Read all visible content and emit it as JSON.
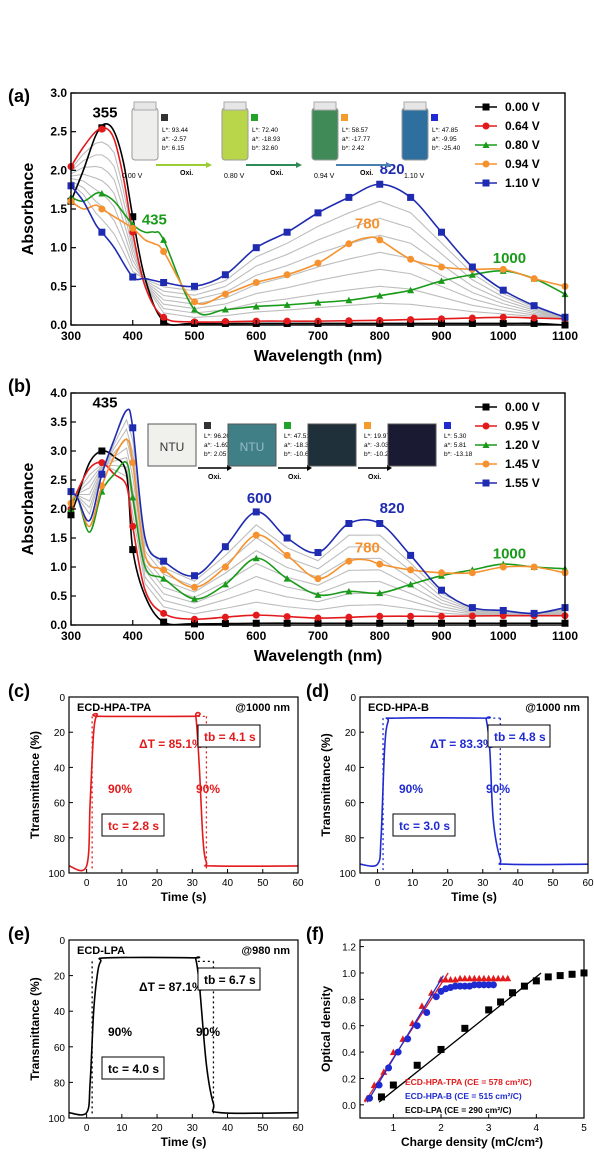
{
  "figure": {
    "panels": [
      "(a)",
      "(b)",
      "(c)",
      "(d)",
      "(e)",
      "(f)"
    ]
  },
  "chart_data": [
    {
      "id": "a",
      "type": "line",
      "xlabel": "Wavelength (nm)",
      "ylabel": "Absorbance",
      "xlim": [
        300,
        1100
      ],
      "ylim": [
        0,
        3.0
      ],
      "xticks": [
        300,
        400,
        500,
        600,
        700,
        800,
        900,
        1000,
        1100
      ],
      "yticks": [
        0.0,
        0.5,
        1.0,
        1.5,
        2.0,
        2.5,
        3.0
      ],
      "legend": [
        "0.00 V",
        "0.64 V",
        "0.80 V",
        "0.94 V",
        "1.10 V"
      ],
      "annotations": [
        "355",
        "435",
        "780",
        "820",
        "1000"
      ],
      "inset": {
        "panels": [
          {
            "label": "L*: 93.44\na*: -2.57\nb*: 6.15",
            "voltage": "0.00 V",
            "color": "#333333",
            "vial": "#eeeeec"
          },
          {
            "label": "L*: 72.40\na*: -18.93\nb*: 32.60",
            "voltage": "0.80 V",
            "color": "#22a229",
            "vial": "#b9d64a"
          },
          {
            "label": "L*: 58.57\na*: -17.77\nb*: 2.42",
            "voltage": "0.94 V",
            "color": "#f39b2b",
            "vial": "#3f8a56"
          },
          {
            "label": "L*: 47.85\na*: -9.95\nb*: -25.40",
            "voltage": "1.10 V",
            "color": "#1f2bd0",
            "vial": "#2f6f9f"
          }
        ],
        "arrow_text": [
          "Oxi.",
          "Oxi.",
          "Oxi."
        ]
      },
      "series": [
        {
          "name": "0.00 V",
          "color": "#000000",
          "marker": "square",
          "x": [
            300,
            320,
            340,
            355,
            370,
            385,
            400,
            420,
            450,
            500,
            600,
            700,
            800,
            900,
            1000,
            1050,
            1100
          ],
          "y": [
            1.6,
            2.0,
            2.45,
            2.6,
            2.5,
            2.1,
            1.4,
            0.6,
            0.05,
            0.02,
            0.02,
            0.02,
            0.02,
            0.02,
            0.02,
            0.02,
            0.0
          ]
        },
        {
          "name": "0.64 V",
          "color": "#e31a1c",
          "marker": "circle",
          "x": [
            300,
            320,
            340,
            355,
            370,
            385,
            400,
            420,
            450,
            500,
            600,
            700,
            800,
            900,
            1000,
            1050,
            1100
          ],
          "y": [
            2.05,
            2.3,
            2.5,
            2.55,
            2.4,
            1.9,
            1.2,
            0.5,
            0.1,
            0.04,
            0.05,
            0.05,
            0.06,
            0.08,
            0.1,
            0.09,
            0.08
          ]
        },
        {
          "name": "0.80 V",
          "color": "#1a9a1a",
          "marker": "triangle",
          "x": [
            300,
            320,
            340,
            350,
            370,
            400,
            420,
            435,
            450,
            500,
            550,
            600,
            650,
            700,
            750,
            800,
            850,
            900,
            950,
            1000,
            1050,
            1100
          ],
          "y": [
            1.65,
            1.6,
            1.7,
            1.7,
            1.6,
            1.3,
            1.2,
            1.2,
            1.1,
            0.2,
            0.2,
            0.24,
            0.26,
            0.29,
            0.32,
            0.38,
            0.45,
            0.57,
            0.65,
            0.7,
            0.6,
            0.4
          ]
        },
        {
          "name": "0.94 V",
          "color": "#f5922f",
          "marker": "circle",
          "x": [
            300,
            320,
            340,
            350,
            370,
            400,
            420,
            435,
            450,
            500,
            550,
            600,
            650,
            700,
            750,
            780,
            800,
            850,
            900,
            950,
            1000,
            1050,
            1100
          ],
          "y": [
            1.6,
            1.5,
            1.55,
            1.5,
            1.4,
            1.25,
            1.1,
            1.05,
            0.95,
            0.3,
            0.4,
            0.55,
            0.65,
            0.8,
            1.05,
            1.13,
            1.1,
            0.85,
            0.75,
            0.72,
            0.72,
            0.6,
            0.5
          ]
        },
        {
          "name": "1.10 V",
          "color": "#1f2bb0",
          "marker": "square",
          "x": [
            300,
            320,
            340,
            350,
            370,
            400,
            420,
            450,
            500,
            550,
            600,
            650,
            700,
            750,
            800,
            850,
            900,
            950,
            1000,
            1050,
            1100
          ],
          "y": [
            1.8,
            1.6,
            1.3,
            1.2,
            1.0,
            0.62,
            0.6,
            0.55,
            0.5,
            0.65,
            1.0,
            1.2,
            1.45,
            1.65,
            1.82,
            1.65,
            1.2,
            0.75,
            0.45,
            0.25,
            0.1
          ]
        }
      ]
    },
    {
      "id": "b",
      "type": "line",
      "xlabel": "Wavelength (nm)",
      "ylabel": "Absorbance",
      "xlim": [
        300,
        1100
      ],
      "ylim": [
        0,
        4.0
      ],
      "xticks": [
        300,
        400,
        500,
        600,
        700,
        800,
        900,
        1000,
        1100
      ],
      "yticks": [
        0.0,
        0.5,
        1.0,
        1.5,
        2.0,
        2.5,
        3.0,
        3.5,
        4.0
      ],
      "legend": [
        "0.00 V",
        "0.95 V",
        "1.20 V",
        "1.45 V",
        "1.55 V"
      ],
      "annotations": [
        "435",
        "600",
        "780",
        "820",
        "1000"
      ],
      "inset": {
        "panels": [
          {
            "label": "L*: 96.20\na*: -1.69\nb*: 2.05",
            "color": "#333333",
            "film": "#f0f0ec",
            "text": "NTU"
          },
          {
            "label": "L*: 47.51\na*: -18.31\nb*: -10.67",
            "color": "#22a229",
            "film": "#3f7f85",
            "text": "NTU"
          },
          {
            "label": "L*: 19.97\na*: -3.03\nb*: -10.20",
            "color": "#f39b2b",
            "film": "#20303a",
            "text": ""
          },
          {
            "label": "L*: 5.30\na*: 5.81\nb*: -13.18",
            "color": "#1f2bd0",
            "film": "#1a1a33",
            "text": ""
          }
        ],
        "arrow_text": [
          "Oxi.",
          "Oxi.",
          "Oxi."
        ]
      },
      "series": [
        {
          "name": "0.00 V",
          "color": "#000000",
          "marker": "square",
          "x": [
            300,
            310,
            330,
            350,
            370,
            390,
            400,
            420,
            450,
            500,
            600,
            700,
            800,
            900,
            1000,
            1100
          ],
          "y": [
            1.9,
            2.2,
            2.8,
            3.0,
            2.9,
            2.6,
            1.3,
            0.5,
            0.05,
            0.02,
            0.03,
            0.03,
            0.03,
            0.03,
            0.03,
            0.03
          ]
        },
        {
          "name": "0.95 V",
          "color": "#e31a1c",
          "marker": "circle",
          "x": [
            300,
            310,
            330,
            350,
            370,
            390,
            400,
            420,
            450,
            500,
            600,
            700,
            800,
            900,
            1000,
            1100
          ],
          "y": [
            2.0,
            2.3,
            2.7,
            2.8,
            2.6,
            2.4,
            1.7,
            0.6,
            0.2,
            0.1,
            0.17,
            0.12,
            0.15,
            0.15,
            0.16,
            0.16
          ]
        },
        {
          "name": "1.20 V",
          "color": "#1a9a1a",
          "marker": "triangle",
          "x": [
            300,
            310,
            330,
            350,
            370,
            390,
            400,
            420,
            450,
            500,
            550,
            600,
            650,
            700,
            750,
            800,
            850,
            900,
            950,
            1000,
            1050,
            1100
          ],
          "y": [
            2.0,
            2.2,
            1.6,
            2.3,
            2.6,
            2.8,
            2.2,
            1.0,
            0.8,
            0.45,
            0.7,
            1.15,
            0.8,
            0.52,
            0.58,
            0.55,
            0.7,
            0.85,
            0.95,
            1.05,
            1.0,
            0.97
          ]
        },
        {
          "name": "1.45 V",
          "color": "#f5922f",
          "marker": "circle",
          "x": [
            300,
            310,
            330,
            350,
            370,
            390,
            400,
            420,
            450,
            500,
            550,
            600,
            650,
            700,
            750,
            780,
            800,
            850,
            900,
            950,
            1000,
            1050,
            1100
          ],
          "y": [
            2.1,
            2.2,
            1.7,
            2.4,
            2.9,
            3.2,
            2.8,
            1.2,
            0.95,
            0.65,
            1.0,
            1.55,
            1.2,
            0.8,
            1.1,
            1.12,
            1.05,
            0.95,
            0.9,
            0.9,
            1.0,
            1.0,
            0.9
          ]
        },
        {
          "name": "1.55 V",
          "color": "#1f2bb0",
          "marker": "square",
          "x": [
            300,
            310,
            330,
            350,
            370,
            390,
            400,
            420,
            450,
            500,
            550,
            600,
            650,
            700,
            750,
            800,
            850,
            900,
            950,
            1000,
            1050,
            1100
          ],
          "y": [
            2.3,
            2.2,
            1.8,
            2.6,
            3.2,
            3.7,
            3.4,
            1.5,
            1.1,
            0.85,
            1.35,
            1.95,
            1.5,
            1.25,
            1.75,
            1.75,
            1.2,
            0.6,
            0.3,
            0.25,
            0.2,
            0.3
          ]
        }
      ]
    },
    {
      "id": "c",
      "type": "line",
      "title": "ECD-HPA-TPA",
      "note": "@1000 nm",
      "xlabel": "Time (s)",
      "ylabel": "Ttransmittance (%)",
      "xlim": [
        -5,
        60
      ],
      "ylim": [
        100,
        0
      ],
      "xticks": [
        0,
        10,
        20,
        30,
        40,
        50,
        60
      ],
      "yticks": [
        0,
        20,
        40,
        60,
        80,
        100
      ],
      "color": "#e31a1c",
      "labels": {
        "delta": "ΔT = 85.1%",
        "tb": "t<sub>b</sub> = 4.1 s",
        "tb_plain": "tb = 4.1 s",
        "tc_plain": "tc = 2.8 s",
        "p1": "90%",
        "p2": "90%"
      },
      "x": [
        -5,
        0,
        1,
        2,
        3,
        4,
        30,
        31,
        32,
        33,
        34,
        36,
        60
      ],
      "y": [
        96,
        96,
        60,
        20,
        10,
        11,
        11,
        11,
        40,
        80,
        94,
        96,
        96
      ]
    },
    {
      "id": "d",
      "type": "line",
      "title": "ECD-HPA-B",
      "note": "@1000 nm",
      "xlabel": "Time (s)",
      "ylabel": "Transmittance (%)",
      "xlim": [
        -5,
        60
      ],
      "ylim": [
        100,
        0
      ],
      "xticks": [
        0,
        10,
        20,
        30,
        40,
        50,
        60
      ],
      "yticks": [
        0,
        20,
        40,
        60,
        80,
        100
      ],
      "color": "#1f2bd0",
      "labels": {
        "delta": "ΔT = 83.3%",
        "tb_plain": "tb = 4.8 s",
        "tc_plain": "tc = 3.0 s",
        "p1": "90%",
        "p2": "90%"
      },
      "x": [
        -5,
        0,
        1,
        2,
        3,
        5,
        30,
        31,
        32,
        33,
        35,
        37,
        60
      ],
      "y": [
        95,
        95,
        80,
        30,
        14,
        12,
        12,
        13,
        30,
        70,
        92,
        95,
        95
      ]
    },
    {
      "id": "e",
      "type": "line",
      "title": "ECD-LPA",
      "note": "@980 nm",
      "xlabel": "Time (s)",
      "ylabel": "Transmittance (%)",
      "xlim": [
        -5,
        60
      ],
      "ylim": [
        100,
        0
      ],
      "xticks": [
        0,
        10,
        20,
        30,
        40,
        50,
        60
      ],
      "yticks": [
        0,
        20,
        40,
        60,
        80,
        100
      ],
      "color": "#000000",
      "labels": {
        "delta": "ΔT = 87.1%",
        "tb_plain": "tb = 6.7 s",
        "tc_plain": "tc = 4.0 s",
        "p1": "90%",
        "p2": "90%"
      },
      "x": [
        -5,
        0,
        1,
        2,
        3,
        4,
        6,
        30,
        31,
        32,
        34,
        36,
        38,
        60
      ],
      "y": [
        97,
        97,
        80,
        40,
        20,
        12,
        10,
        10,
        11,
        25,
        70,
        92,
        97,
        97
      ]
    },
    {
      "id": "f",
      "type": "scatter",
      "xlabel": "Charge density (mC/cm²)",
      "ylabel": "Optical density",
      "xlim": [
        0.3,
        5
      ],
      "ylim": [
        -0.1,
        1.25
      ],
      "xticks": [
        1,
        2,
        3,
        4,
        5
      ],
      "yticks": [
        0.0,
        0.2,
        0.4,
        0.6,
        0.8,
        1.0,
        1.2
      ],
      "legend": [
        "ECD-HPA-TPA (CE = 578 cm²/C)",
        "ECD-HPA-B (CE = 515 cm²/C)",
        "ECD-LPA (CE = 290 cm²/C)"
      ],
      "series": [
        {
          "name": "ECD-HPA-TPA (CE = 578 cm²/C)",
          "color": "#e31a1c",
          "marker": "triangle",
          "x": [
            0.45,
            0.6,
            0.8,
            1.0,
            1.2,
            1.4,
            1.6,
            1.8,
            2.0,
            2.1,
            2.2,
            2.3,
            2.4,
            2.5,
            2.6,
            2.7,
            2.8,
            2.9,
            3.0,
            3.1,
            3.2,
            3.3,
            3.4
          ],
          "y": [
            0.05,
            0.15,
            0.25,
            0.4,
            0.5,
            0.62,
            0.75,
            0.85,
            0.95,
            0.95,
            0.95,
            0.95,
            0.96,
            0.96,
            0.96,
            0.96,
            0.96,
            0.96,
            0.96,
            0.96,
            0.96,
            0.96,
            0.96
          ],
          "fit": {
            "x": [
              0.4,
              2.15
            ],
            "y": [
              0.02,
              1.0
            ]
          }
        },
        {
          "name": "ECD-HPA-B (CE = 515 cm²/C)",
          "color": "#1f2bd0",
          "marker": "circle",
          "x": [
            0.5,
            0.7,
            0.9,
            1.1,
            1.3,
            1.5,
            1.7,
            1.9,
            2.0,
            2.1,
            2.2,
            2.3,
            2.4,
            2.5,
            2.6,
            2.7,
            2.8,
            2.9,
            3.0,
            3.1
          ],
          "y": [
            0.05,
            0.15,
            0.28,
            0.4,
            0.5,
            0.6,
            0.7,
            0.82,
            0.86,
            0.88,
            0.89,
            0.9,
            0.9,
            0.9,
            0.9,
            0.91,
            0.91,
            0.91,
            0.91,
            0.91
          ],
          "fit": {
            "x": [
              0.45,
              2.05
            ],
            "y": [
              0.02,
              0.98
            ]
          }
        },
        {
          "name": "ECD-LPA (CE = 290 cm²/C)",
          "color": "#000000",
          "marker": "square",
          "x": [
            0.75,
            1.0,
            1.5,
            2.0,
            2.5,
            3.0,
            3.25,
            3.5,
            3.75,
            4.0,
            4.25,
            4.5,
            4.75,
            5.0
          ],
          "y": [
            0.06,
            0.15,
            0.3,
            0.42,
            0.58,
            0.72,
            0.78,
            0.85,
            0.9,
            0.94,
            0.97,
            0.98,
            0.99,
            1.0
          ],
          "fit": {
            "x": [
              0.7,
              4.1
            ],
            "y": [
              0.02,
              1.0
            ]
          }
        }
      ]
    }
  ]
}
